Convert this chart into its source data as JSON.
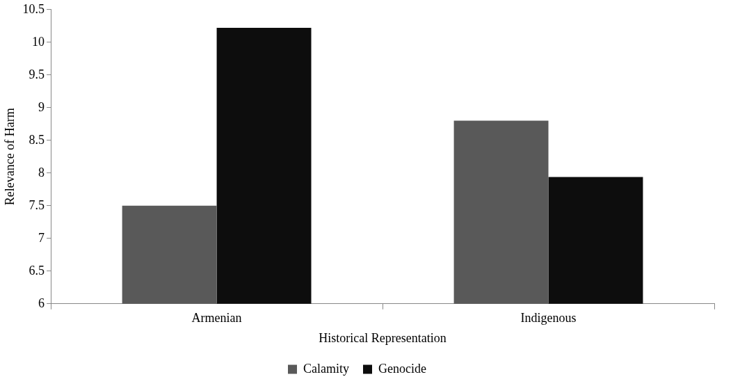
{
  "chart_data": {
    "type": "bar",
    "xlabel": "Historical Representation",
    "ylabel": "Relevance of Harm",
    "categories": [
      "Armenian",
      "Indigenous"
    ],
    "series": [
      {
        "name": "Calamity",
        "color": "#595959",
        "values": [
          7.5,
          8.8
        ]
      },
      {
        "name": "Genocide",
        "color": "#0d0d0d",
        "values": [
          10.22,
          7.94
        ]
      }
    ],
    "ylim": [
      6,
      10.5
    ],
    "yticks": [
      6,
      6.5,
      7,
      7.5,
      8,
      8.5,
      9,
      9.5,
      10,
      10.5
    ],
    "grid": false,
    "legend": "bottom"
  }
}
